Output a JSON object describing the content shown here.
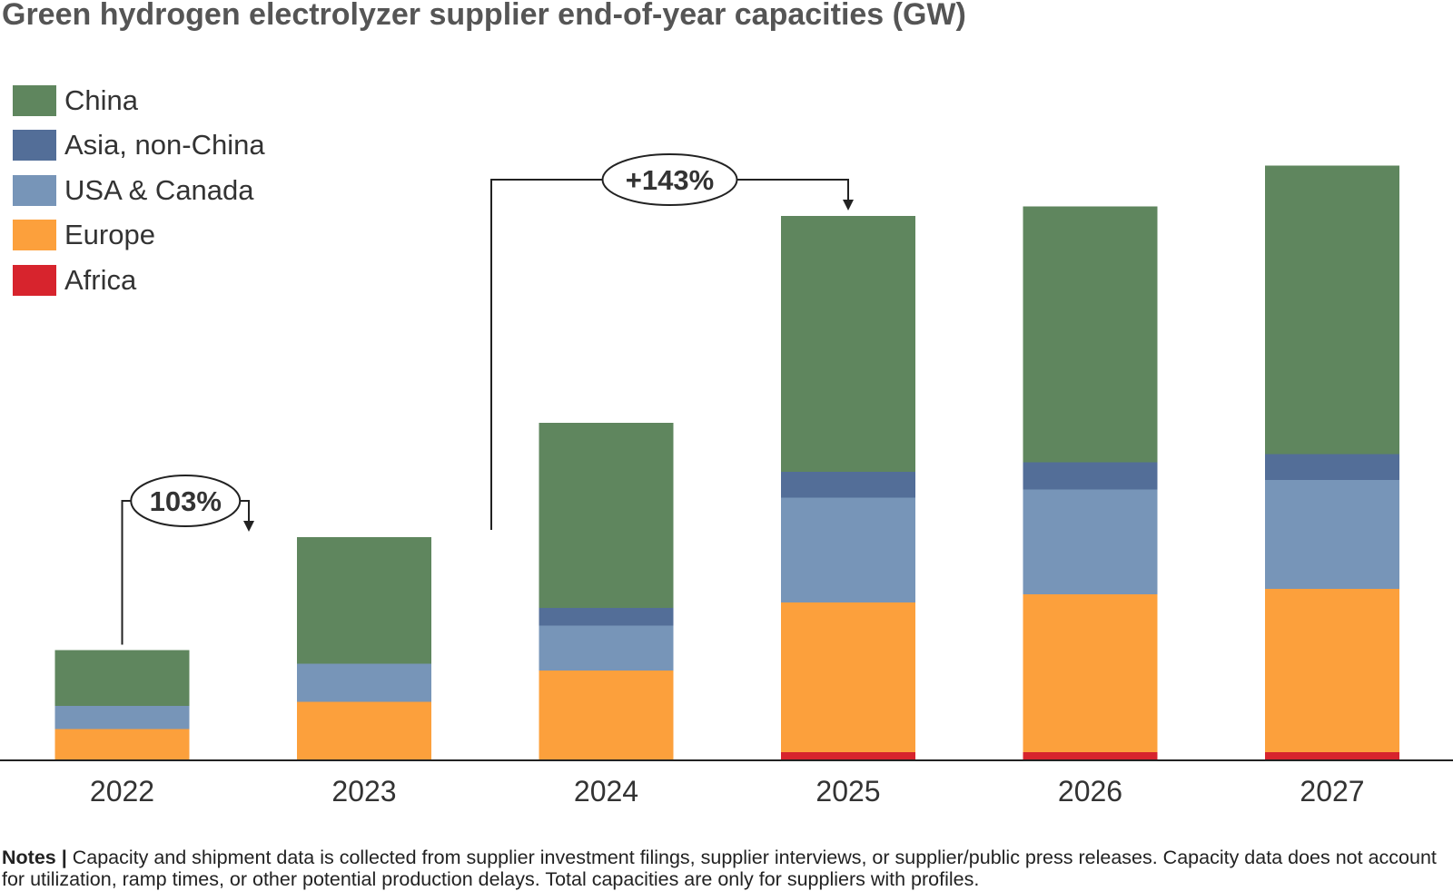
{
  "chart_data": {
    "type": "bar",
    "stacked": true,
    "title": "Green hydrogen electrolyzer supplier end-of-year capacities (GW)",
    "xlabel": "",
    "ylabel": "",
    "categories": [
      "2022",
      "2023",
      "2024",
      "2025",
      "2026",
      "2027"
    ],
    "ylim": [
      0,
      250
    ],
    "series": [
      {
        "name": "Africa",
        "color": "#d7242d",
        "values": [
          0,
          0,
          0,
          3.0,
          3.0,
          3.0
        ]
      },
      {
        "name": "Europe",
        "color": "#fca03c",
        "values": [
          11.5,
          21.5,
          33.0,
          55.0,
          58.0,
          60.0
        ]
      },
      {
        "name": "USA & Canada",
        "color": "#7795b8",
        "values": [
          8.5,
          14.0,
          16.5,
          38.5,
          38.5,
          40.0
        ]
      },
      {
        "name": "Asia, non-China",
        "color": "#536e98",
        "values": [
          0,
          0,
          6.5,
          9.5,
          10.0,
          9.5
        ]
      },
      {
        "name": "China",
        "color": "#5f865e",
        "values": [
          20.5,
          46.5,
          68.0,
          94.0,
          94.0,
          106.0
        ]
      }
    ],
    "legend_order": [
      "China",
      "Asia, non-China",
      "USA & Canada",
      "Europe",
      "Africa"
    ],
    "legend_position": "top-left",
    "grid": false,
    "annotations": [
      {
        "label": "103%",
        "from": "2022",
        "to": "2023",
        "bold": true
      },
      {
        "label": "+143%",
        "from": "2023",
        "to": "2025",
        "bold": true
      }
    ]
  },
  "notes": {
    "label": "Notes |",
    "text": " Capacity and shipment data is collected from supplier investment filings, supplier interviews, or supplier/public press releases. Capacity data does not account for utilization, ramp times, or other potential production delays. Total capacities are only for suppliers with profiles."
  }
}
